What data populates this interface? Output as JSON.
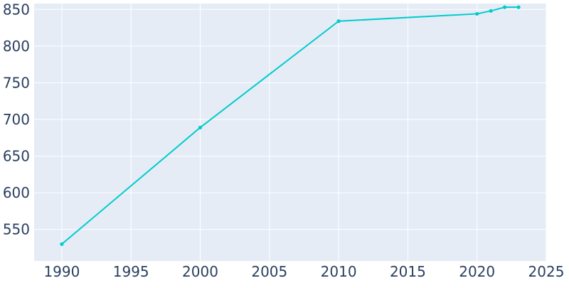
{
  "chart_data": {
    "type": "line",
    "title": "",
    "xlabel": "",
    "ylabel": "",
    "x": [
      1990,
      2000,
      2010,
      2020,
      2021,
      2022,
      2023
    ],
    "series": [
      {
        "values": [
          530,
          689,
          834,
          844,
          848,
          853,
          853
        ]
      }
    ],
    "xlim": [
      1988,
      2025
    ],
    "ylim": [
      507,
      858
    ],
    "x_ticks": [
      1990,
      1995,
      2000,
      2005,
      2010,
      2015,
      2020,
      2025
    ],
    "y_ticks": [
      550,
      600,
      650,
      700,
      750,
      800,
      850
    ],
    "grid": true,
    "legend": "none",
    "colors": {
      "plot_bg": "#e5ecf6",
      "grid": "#ffffff",
      "line": "#00cccc",
      "text": "#2a3f5f"
    }
  }
}
